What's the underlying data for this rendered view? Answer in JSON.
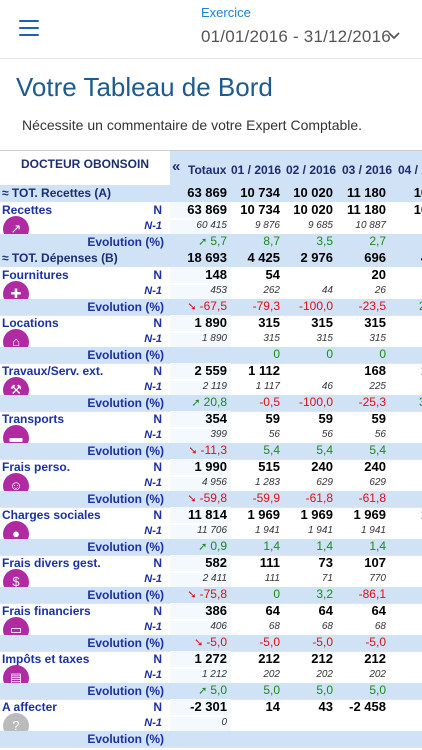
{
  "header": {
    "exercice_label": "Exercice",
    "period": "01/01/2016 - 31/12/2016"
  },
  "title": "Votre Tableau de Bord",
  "subtitle": "Nécessite un commentaire de votre Expert Comptable.",
  "table": {
    "client": "DOCTEUR OBONSOIN",
    "collapse_arrow": "«",
    "columns": [
      "Totaux",
      "01 / 2016",
      "02 / 2016",
      "03 / 2016",
      "04 / 20"
    ],
    "rows": [
      {
        "kind": "total",
        "label": "≈ TOT. Recettes (A)",
        "values": [
          "63 869",
          "10 734",
          "10 020",
          "11 180",
          "10 7"
        ]
      },
      {
        "kind": "n",
        "label": "Recettes",
        "tag": "N",
        "values": [
          "63 869",
          "10 734",
          "10 020",
          "11 180",
          "10 7"
        ]
      },
      {
        "kind": "n1",
        "tag": "N-1",
        "values": [
          "60 415",
          "9 876",
          "9 685",
          "10 887",
          "9 8"
        ]
      },
      {
        "kind": "evo",
        "label": "Evolution (%)",
        "values": [
          "5,7",
          "8,7",
          "3,5",
          "2,7",
          "8"
        ],
        "colors": [
          "green",
          "green",
          "green",
          "green",
          "green"
        ],
        "arrow": "up"
      },
      {
        "kind": "total",
        "label": "≈ TOT. Dépenses (B)",
        "values": [
          "18 693",
          "4 425",
          "2 976",
          "696",
          "4 4"
        ]
      },
      {
        "kind": "n",
        "label": "Fournitures",
        "tag": "N",
        "values": [
          "148",
          "54",
          "",
          "20",
          ""
        ]
      },
      {
        "kind": "n1",
        "tag": "N-1",
        "values": [
          "453",
          "262",
          "44",
          "26",
          ""
        ]
      },
      {
        "kind": "evo",
        "label": "Evolution (%)",
        "values": [
          "-67,5",
          "-79,3",
          "-100,0",
          "-23,5",
          "228"
        ],
        "colors": [
          "red",
          "red",
          "red",
          "red",
          "green"
        ],
        "arrow": "down"
      },
      {
        "kind": "n",
        "label": "Locations",
        "tag": "N",
        "values": [
          "1 890",
          "315",
          "315",
          "315",
          "3"
        ]
      },
      {
        "kind": "n1",
        "tag": "N-1",
        "values": [
          "1 890",
          "315",
          "315",
          "315",
          ""
        ]
      },
      {
        "kind": "evo",
        "label": "Evolution (%)",
        "values": [
          "",
          "0",
          "0",
          "0",
          ""
        ],
        "colors": [
          "",
          "green",
          "green",
          "green",
          ""
        ],
        "arrow": ""
      },
      {
        "kind": "n",
        "label": "Travaux/Serv. ext.",
        "tag": "N",
        "values": [
          "2 559",
          "1 112",
          "",
          "168",
          "1 1"
        ]
      },
      {
        "kind": "n1",
        "tag": "N-1",
        "values": [
          "2 119",
          "1 117",
          "46",
          "225",
          ""
        ]
      },
      {
        "kind": "evo",
        "label": "Evolution (%)",
        "values": [
          "20,8",
          "-0,5",
          "-100,0",
          "-25,3",
          "367"
        ],
        "colors": [
          "green",
          "red",
          "red",
          "red",
          "green"
        ],
        "arrow": "up"
      },
      {
        "kind": "n",
        "label": "Transports",
        "tag": "N",
        "values": [
          "354",
          "59",
          "59",
          "59",
          ""
        ]
      },
      {
        "kind": "n1",
        "tag": "N-1",
        "values": [
          "399",
          "56",
          "56",
          "56",
          ""
        ]
      },
      {
        "kind": "evo",
        "label": "Evolution (%)",
        "values": [
          "-11,3",
          "5,4",
          "5,4",
          "5,4",
          ""
        ],
        "colors": [
          "red",
          "green",
          "green",
          "green",
          ""
        ],
        "arrow": "down"
      },
      {
        "kind": "n",
        "label": "Frais perso.",
        "tag": "N",
        "values": [
          "1 990",
          "515",
          "240",
          "240",
          "5"
        ]
      },
      {
        "kind": "n1",
        "tag": "N-1",
        "values": [
          "4 956",
          "1 283",
          "629",
          "629",
          "1"
        ]
      },
      {
        "kind": "evo",
        "label": "Evolution (%)",
        "values": [
          "-59,8",
          "-59,9",
          "-61,8",
          "-61,8",
          "-5"
        ],
        "colors": [
          "red",
          "red",
          "red",
          "red",
          "red"
        ],
        "arrow": "down"
      },
      {
        "kind": "n",
        "label": "Charges sociales",
        "tag": "N",
        "values": [
          "11 814",
          "1 969",
          "1 969",
          "1 969",
          "1 9"
        ]
      },
      {
        "kind": "n1",
        "tag": "N-1",
        "values": [
          "11 706",
          "1 941",
          "1 941",
          "1 941",
          "1 9"
        ]
      },
      {
        "kind": "evo",
        "label": "Evolution (%)",
        "values": [
          "0,9",
          "1,4",
          "1,4",
          "1,4",
          ""
        ],
        "colors": [
          "green",
          "green",
          "green",
          "green",
          ""
        ],
        "arrow": "up"
      },
      {
        "kind": "n",
        "label": "Frais divers gest.",
        "tag": "N",
        "values": [
          "582",
          "111",
          "73",
          "107",
          "1"
        ]
      },
      {
        "kind": "n1",
        "tag": "N-1",
        "values": [
          "2 411",
          "111",
          "71",
          "770",
          ""
        ]
      },
      {
        "kind": "evo",
        "label": "Evolution (%)",
        "values": [
          "-75,8",
          "0",
          "3,2",
          "-86,1",
          "-7"
        ],
        "colors": [
          "red",
          "green",
          "green",
          "red",
          "red"
        ],
        "arrow": "down"
      },
      {
        "kind": "n",
        "label": "Frais financiers",
        "tag": "N",
        "values": [
          "386",
          "64",
          "64",
          "64",
          ""
        ]
      },
      {
        "kind": "n1",
        "tag": "N-1",
        "values": [
          "406",
          "68",
          "68",
          "68",
          ""
        ]
      },
      {
        "kind": "evo",
        "label": "Evolution (%)",
        "values": [
          "-5,0",
          "-5,0",
          "-5,0",
          "-5,0",
          ""
        ],
        "colors": [
          "red",
          "red",
          "red",
          "red",
          ""
        ],
        "arrow": "down"
      },
      {
        "kind": "n",
        "label": "Impôts et taxes",
        "tag": "N",
        "values": [
          "1 272",
          "212",
          "212",
          "212",
          "2"
        ]
      },
      {
        "kind": "n1",
        "tag": "N-1",
        "values": [
          "1 212",
          "202",
          "202",
          "202",
          ""
        ]
      },
      {
        "kind": "evo",
        "label": "Evolution (%)",
        "values": [
          "5,0",
          "5,0",
          "5,0",
          "5,0",
          ""
        ],
        "colors": [
          "green",
          "green",
          "green",
          "green",
          ""
        ],
        "arrow": "up"
      },
      {
        "kind": "n",
        "label": "A affecter",
        "tag": "N",
        "values": [
          "-2 301",
          "14",
          "43",
          "-2 458",
          ""
        ]
      },
      {
        "kind": "n1",
        "tag": "N-1",
        "values": [
          "0",
          "",
          "",
          "",
          ""
        ]
      },
      {
        "kind": "evo",
        "label": "Evolution (%)",
        "values": [
          "",
          "",
          "",
          "",
          ""
        ],
        "colors": [
          "",
          "",
          "",
          "",
          ""
        ],
        "arrow": ""
      }
    ],
    "icons": [
      "chart-icon",
      "medical-kit-icon",
      "house-key-icon",
      "tools-icon",
      "car-icon",
      "person-money-icon",
      "person-icon",
      "money-icon",
      "credit-card-icon",
      "tax-document-icon",
      "question-icon"
    ]
  }
}
